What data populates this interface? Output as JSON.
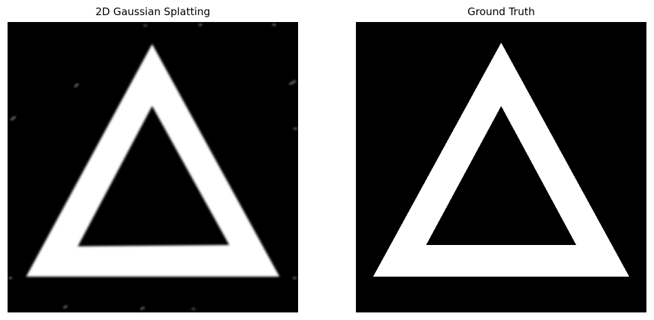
{
  "panels": [
    {
      "title": "2D Gaussian Splatting"
    },
    {
      "title": "Ground Truth"
    }
  ],
  "colors": {
    "background": "#ffffff",
    "image_background": "#000000",
    "shape": "#ffffff"
  }
}
